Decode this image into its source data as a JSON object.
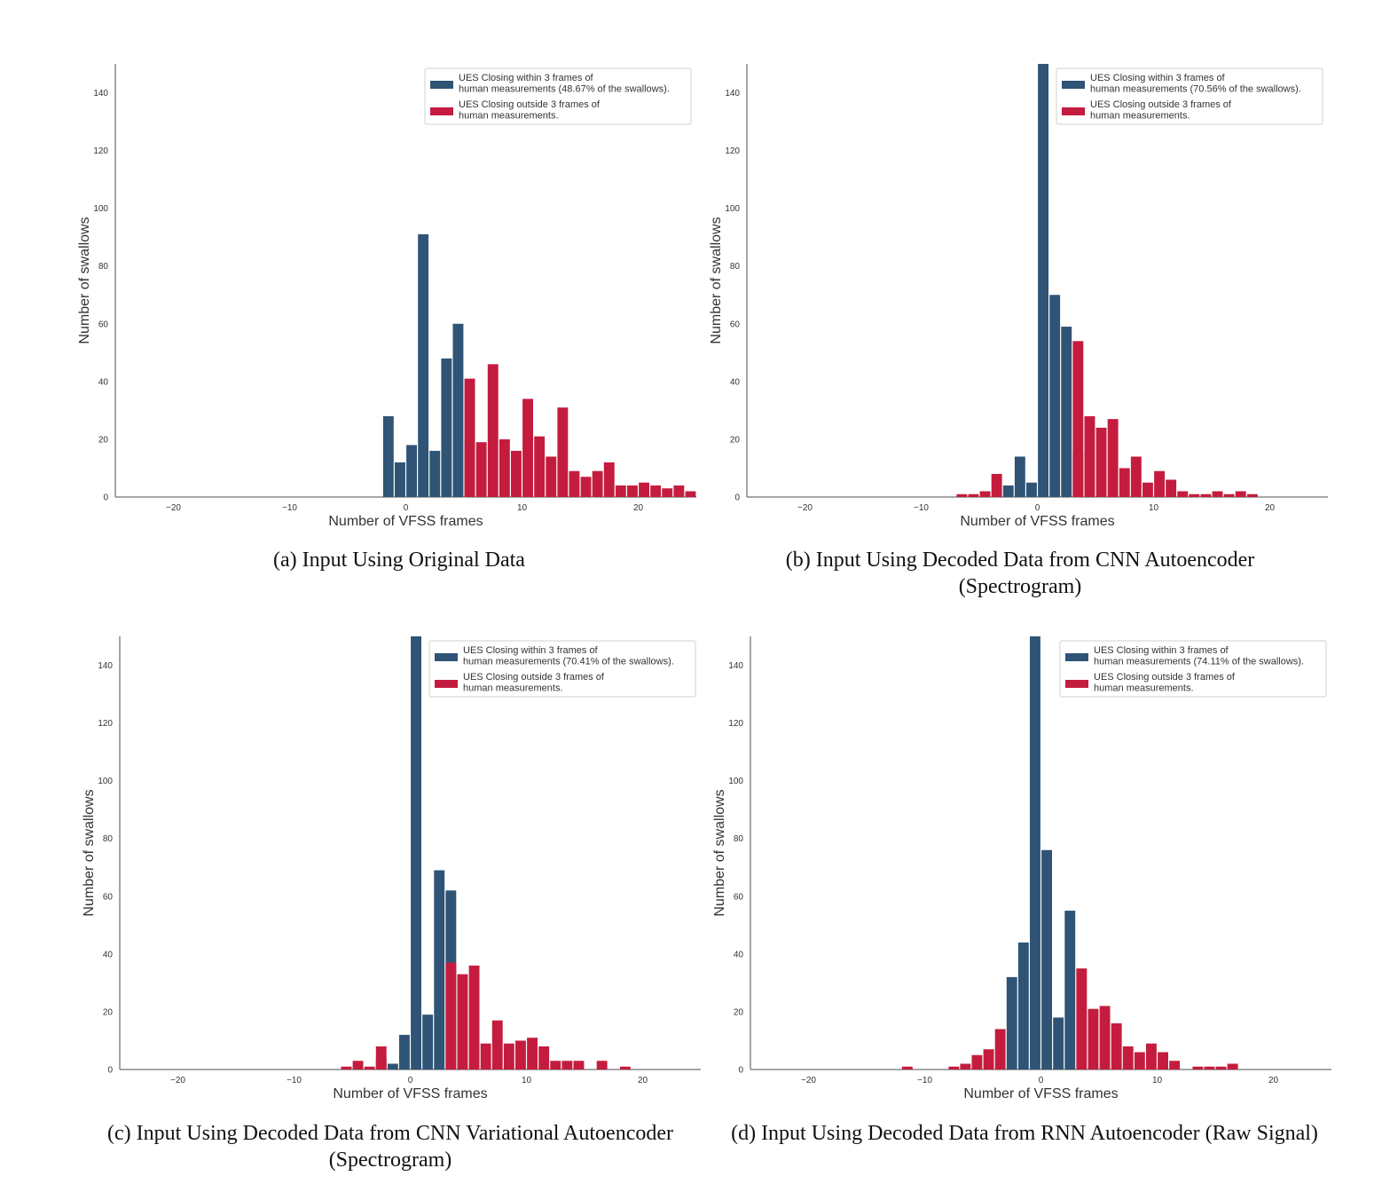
{
  "colors": {
    "within": "#2f5475",
    "outside": "#c41c3e",
    "axis": "#888888"
  },
  "chart_data": [
    {
      "type": "bar",
      "title": "",
      "caption": "(a) Input Using Original Data",
      "xlabel": "Number of VFSS frames",
      "ylabel": "Number of swallows",
      "xlim": [
        -25,
        25
      ],
      "ylim": [
        0,
        150
      ],
      "xticks": [
        -20,
        -10,
        0,
        10,
        20
      ],
      "yticks": [
        0,
        20,
        40,
        60,
        80,
        100,
        120,
        140
      ],
      "legend_position": "top-right",
      "legend": [
        "UES Closing within 3 frames of\n human measurements (48.67% of the swallows).",
        "UES Closing outside 3 frames of\n human measurements."
      ],
      "series": [
        {
          "name": "UES Closing within 3 frames of human measurements (48.67% of the swallows).",
          "x": [
            -3,
            -2,
            -1,
            0,
            1,
            2,
            3,
            4,
            5
          ],
          "values": [
            0,
            28,
            12,
            18,
            91,
            16,
            48,
            60,
            19
          ]
        },
        {
          "name": "UES Closing outside 3 frames of human measurements.",
          "x": [
            5,
            6,
            7,
            8,
            9,
            10,
            11,
            12,
            13,
            14,
            15,
            16,
            17,
            18,
            19,
            20,
            21,
            22,
            23,
            24
          ],
          "values": [
            41,
            19,
            46,
            20,
            16,
            34,
            21,
            14,
            31,
            9,
            7,
            9,
            12,
            4,
            4,
            5,
            4,
            3,
            4,
            2
          ]
        }
      ]
    },
    {
      "type": "bar",
      "title": "",
      "caption": "(b) Input Using Decoded Data from CNN Autoencoder (Spectrogram)",
      "xlabel": "Number of VFSS frames",
      "ylabel": "Number of swallows",
      "xlim": [
        -25,
        25
      ],
      "ylim": [
        0,
        150
      ],
      "xticks": [
        -20,
        -10,
        0,
        10,
        20
      ],
      "yticks": [
        0,
        20,
        40,
        60,
        80,
        100,
        120,
        140
      ],
      "legend_position": "top-right",
      "legend": [
        "UES Closing within 3 frames of\n human measurements (70.56% of the swallows).",
        "UES Closing outside 3 frames of\n human measurements."
      ],
      "series": [
        {
          "name": "UES Closing within 3 frames of human measurements (70.56% of the swallows).",
          "x": [
            -3,
            -2,
            -1,
            0,
            1,
            2,
            3
          ],
          "values": [
            4,
            14,
            5,
            150,
            70,
            59,
            15
          ]
        },
        {
          "name": "UES Closing outside 3 frames of human measurements.",
          "x": [
            -7,
            -6,
            -5,
            -4,
            3,
            4,
            5,
            6,
            7,
            8,
            9,
            10,
            11,
            12,
            13,
            14,
            15,
            16,
            17,
            18
          ],
          "values": [
            1,
            1,
            2,
            8,
            54,
            28,
            24,
            27,
            10,
            14,
            5,
            9,
            6,
            2,
            1,
            1,
            2,
            1,
            2,
            1
          ]
        }
      ]
    },
    {
      "type": "bar",
      "title": "",
      "caption": "(c) Input Using Decoded Data from CNN Variational Autoencoder (Spectrogram)",
      "xlabel": "Number of VFSS frames",
      "ylabel": "Number of swallows",
      "xlim": [
        -25,
        25
      ],
      "ylim": [
        0,
        150
      ],
      "xticks": [
        -20,
        -10,
        0,
        10,
        20
      ],
      "yticks": [
        0,
        20,
        40,
        60,
        80,
        100,
        120,
        140
      ],
      "legend_position": "top-right",
      "legend": [
        "UES Closing within 3 frames of\n human measurements (70.41% of the swallows).",
        "UES Closing outside 3 frames of\n human measurements."
      ],
      "series": [
        {
          "name": "UES Closing within 3 frames of human measurements (70.41% of the swallows).",
          "x": [
            -3,
            -2,
            -1,
            0,
            1,
            2,
            3
          ],
          "values": [
            4,
            2,
            12,
            150,
            19,
            69,
            62
          ]
        },
        {
          "name": "UES Closing outside 3 frames of human measurements.",
          "x": [
            -6,
            -5,
            -4,
            -3,
            3,
            4,
            5,
            6,
            7,
            8,
            9,
            10,
            11,
            12,
            13,
            14,
            16,
            18
          ],
          "values": [
            1,
            3,
            1,
            8,
            37,
            33,
            36,
            9,
            17,
            9,
            10,
            11,
            8,
            3,
            3,
            3,
            3,
            1
          ]
        }
      ]
    },
    {
      "type": "bar",
      "title": "",
      "caption": "(d) Input Using Decoded Data from RNN Autoencoder (Raw Signal)",
      "xlabel": "Number of VFSS frames",
      "ylabel": "Number of swallows",
      "xlim": [
        -25,
        25
      ],
      "ylim": [
        0,
        150
      ],
      "xticks": [
        -20,
        -10,
        0,
        10,
        20
      ],
      "yticks": [
        0,
        20,
        40,
        60,
        80,
        100,
        120,
        140
      ],
      "legend_position": "top-right",
      "legend": [
        "UES Closing within 3 frames of\n human measurements (74.11% of the swallows).",
        "UES Closing outside 3 frames of\n human measurements."
      ],
      "series": [
        {
          "name": "UES Closing within 3 frames of human measurements (74.11% of the swallows).",
          "x": [
            -3,
            -2,
            -1,
            0,
            1,
            2,
            3
          ],
          "values": [
            32,
            44,
            150,
            76,
            18,
            55,
            0
          ]
        },
        {
          "name": "UES Closing outside 3 frames of human measurements.",
          "x": [
            -12,
            -8,
            -7,
            -6,
            -5,
            -4,
            3,
            4,
            5,
            6,
            7,
            8,
            9,
            10,
            11,
            13,
            14,
            15,
            16
          ],
          "values": [
            1,
            1,
            2,
            5,
            7,
            14,
            35,
            21,
            22,
            16,
            8,
            6,
            9,
            6,
            3,
            1,
            1,
            1,
            2
          ]
        }
      ]
    }
  ]
}
